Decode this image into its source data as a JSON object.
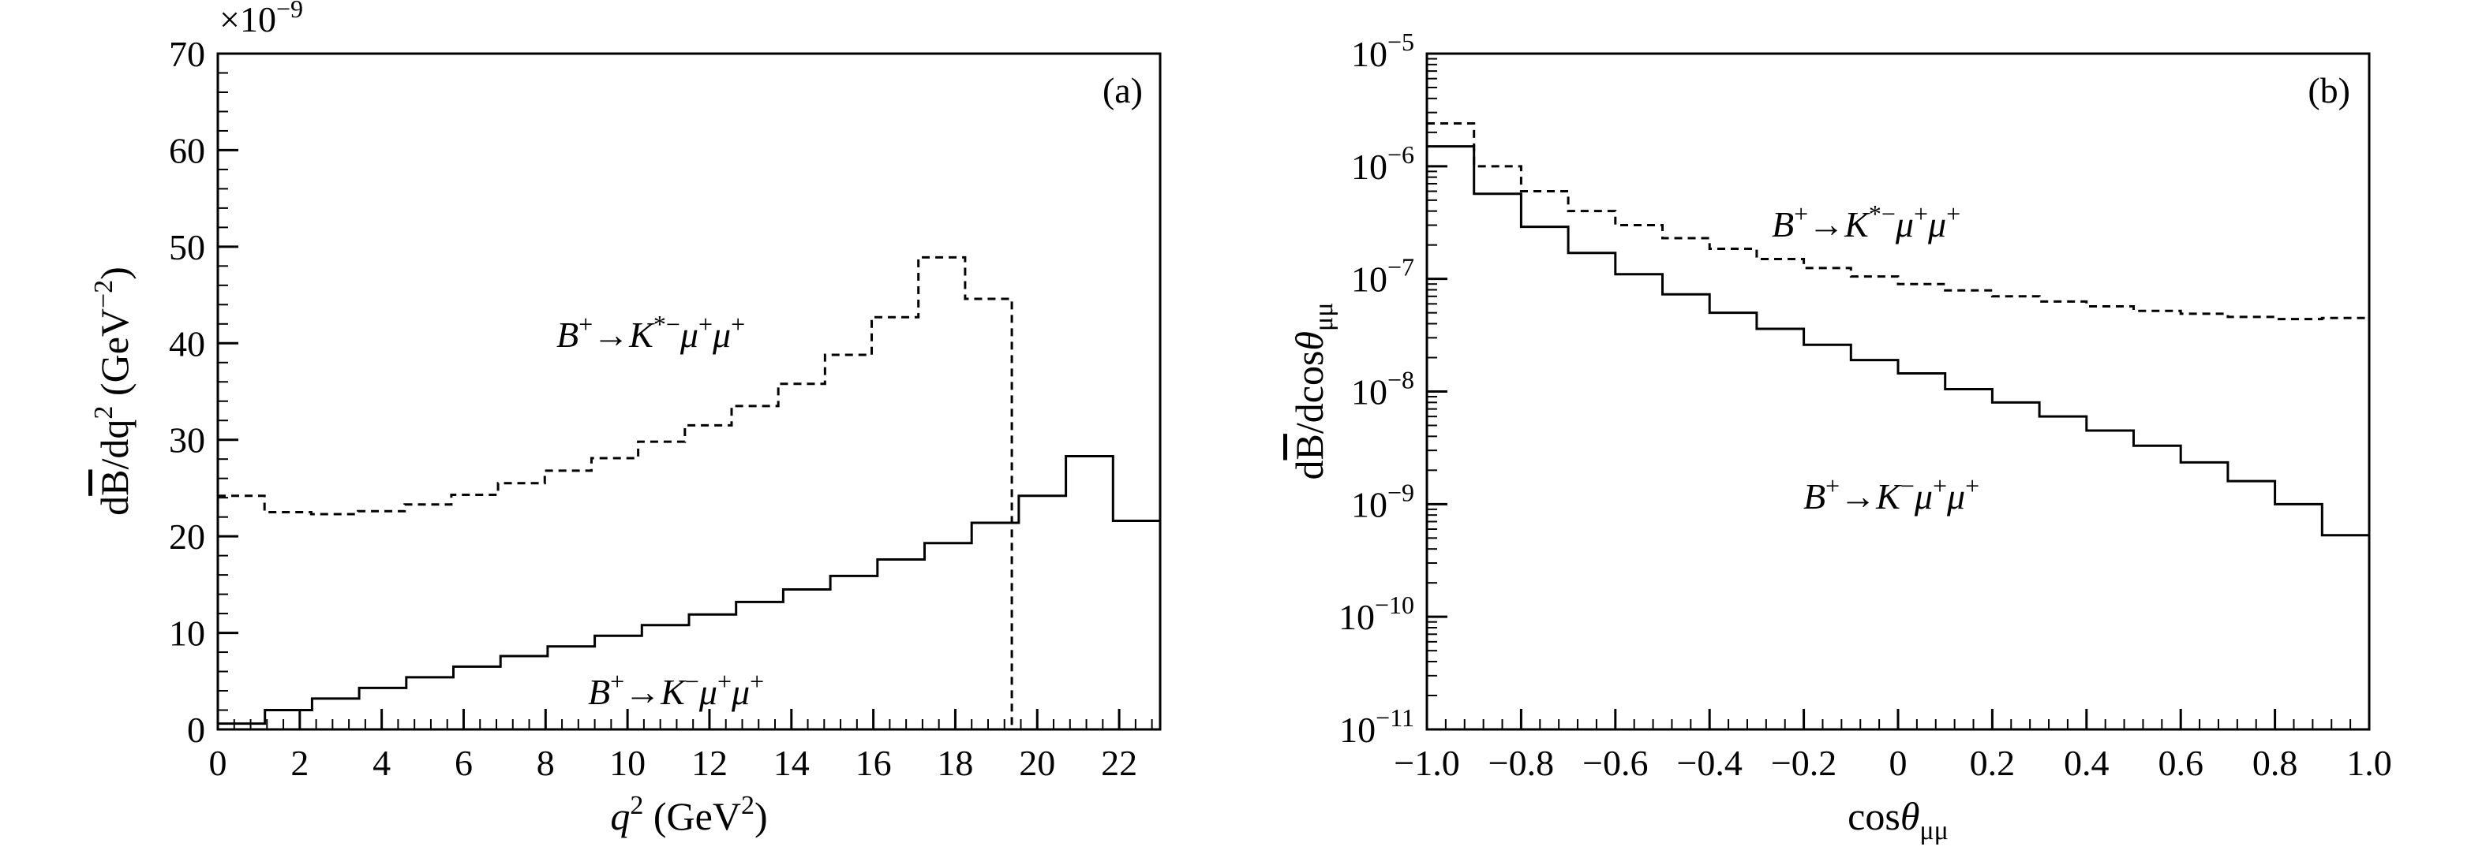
{
  "chart_data": [
    {
      "type": "histogram",
      "panel_label": "(a)",
      "xlabel": {
        "base": "q",
        "sup": "2",
        "rest": " (GeV",
        "sup2": "2",
        "close": ")"
      },
      "ylabel": {
        "pre": "d",
        "bar": "B",
        "mid": "/dq",
        "sup": "2",
        "rest": " (GeV",
        "sup2": "−2",
        "close": ")"
      },
      "y_multiplier": {
        "base": "×10",
        "exp": "−9"
      },
      "xlim": [
        0,
        23
      ],
      "ylim": [
        0,
        70
      ],
      "x_ticks": [
        0,
        2,
        4,
        6,
        8,
        10,
        12,
        14,
        16,
        18,
        20,
        22
      ],
      "y_ticks": [
        0,
        10,
        20,
        30,
        40,
        50,
        60,
        70
      ],
      "series": [
        {
          "name": "B+→K*−μ+μ+",
          "label": {
            "b": "B",
            "bsup": "+",
            "arrow": "→",
            "k": "K",
            "ksup": "*−",
            "m1": "μ",
            "m1sup": "+",
            "m2": "μ",
            "m2sup": "+"
          },
          "style": "dashed",
          "edges": [
            0,
            1.14,
            2.28,
            3.42,
            4.56,
            5.7,
            6.84,
            7.98,
            9.12,
            10.26,
            11.4,
            12.54,
            13.68,
            14.82,
            15.96,
            17.1,
            18.24,
            19.38
          ],
          "values": [
            24.2,
            22.5,
            22.3,
            22.6,
            23.3,
            24.3,
            25.5,
            26.8,
            28.1,
            29.8,
            31.5,
            33.5,
            35.8,
            38.8,
            42.7,
            48.9,
            44.6
          ],
          "drop_to": 0
        },
        {
          "name": "B+→K−μ+μ+",
          "label": {
            "b": "B",
            "bsup": "+",
            "arrow": "→",
            "k": "K",
            "ksup": "−",
            "m1": "μ",
            "m1sup": "+",
            "m2": "μ",
            "m2sup": "+"
          },
          "style": "solid",
          "edges": [
            0,
            1.15,
            2.3,
            3.45,
            4.6,
            5.75,
            6.9,
            8.05,
            9.2,
            10.35,
            11.5,
            12.65,
            13.8,
            14.95,
            16.1,
            17.25,
            18.4,
            19.55,
            20.7,
            21.85,
            23.0
          ],
          "values": [
            0.6,
            2.0,
            3.2,
            4.3,
            5.4,
            6.5,
            7.6,
            8.6,
            9.7,
            10.8,
            11.9,
            13.2,
            14.5,
            15.9,
            17.6,
            19.3,
            21.4,
            24.2,
            28.3,
            21.6
          ]
        }
      ]
    },
    {
      "type": "histogram",
      "panel_label": "(b)",
      "xlabel": {
        "base": "cos",
        "theta": "θ",
        "sub": "μμ"
      },
      "ylabel": {
        "pre": "d",
        "bar": "B",
        "mid": "/dcos",
        "theta": "θ",
        "sub": "μμ"
      },
      "y_scale": "log",
      "xlim": [
        -1.0,
        1.0
      ],
      "ylim": [
        1e-11,
        1e-05
      ],
      "x_ticks": [
        -1.0,
        -0.8,
        -0.6,
        -0.4,
        -0.2,
        0,
        0.2,
        0.4,
        0.6,
        0.8,
        1.0
      ],
      "x_tick_labels": [
        "−1.0",
        "−0.8",
        "−0.6",
        "−0.4",
        "−0.2",
        "0",
        "0.2",
        "0.4",
        "0.6",
        "0.8",
        "1.0"
      ],
      "y_ticks": [
        {
          "value": 1e-11,
          "exp": "−11"
        },
        {
          "value": 1e-10,
          "exp": "−10"
        },
        {
          "value": 1e-09,
          "exp": "−9"
        },
        {
          "value": 1e-08,
          "exp": "−8"
        },
        {
          "value": 1e-07,
          "exp": "−7"
        },
        {
          "value": 1e-06,
          "exp": "−6"
        },
        {
          "value": 1e-05,
          "exp": "−5"
        }
      ],
      "y_tick_base": "10",
      "series": [
        {
          "name": "B+→K*−μ+μ+",
          "label": {
            "b": "B",
            "bsup": "+",
            "arrow": "→",
            "k": "K",
            "ksup": "*−",
            "m1": "μ",
            "m1sup": "+",
            "m2": "μ",
            "m2sup": "+"
          },
          "style": "dashed",
          "edges": [
            -1.0,
            -0.9,
            -0.8,
            -0.7,
            -0.6,
            -0.5,
            -0.4,
            -0.3,
            -0.2,
            -0.1,
            0.0,
            0.1,
            0.2,
            0.3,
            0.4,
            0.5,
            0.6,
            0.7,
            0.8,
            0.9,
            1.0
          ],
          "values": [
            2.4e-06,
            1e-06,
            6e-07,
            4e-07,
            3e-07,
            2.3e-07,
            1.85e-07,
            1.5e-07,
            1.25e-07,
            1.05e-07,
            9e-08,
            7.9e-08,
            7e-08,
            6.3e-08,
            5.7e-08,
            5.2e-08,
            4.9e-08,
            4.6e-08,
            4.4e-08,
            4.5e-08
          ]
        },
        {
          "name": "B+→K−μ+μ+",
          "label": {
            "b": "B",
            "bsup": "+",
            "arrow": "→",
            "k": "K",
            "ksup": "−",
            "m1": "μ",
            "m1sup": "+",
            "m2": "μ",
            "m2sup": "+"
          },
          "style": "solid",
          "edges": [
            -1.0,
            -0.9,
            -0.8,
            -0.7,
            -0.6,
            -0.5,
            -0.4,
            -0.3,
            -0.2,
            -0.1,
            0.0,
            0.1,
            0.2,
            0.3,
            0.4,
            0.5,
            0.6,
            0.7,
            0.8,
            0.9,
            1.0
          ],
          "values": [
            1.5e-06,
            5.7e-07,
            2.9e-07,
            1.7e-07,
            1.1e-07,
            7.3e-08,
            5e-08,
            3.6e-08,
            2.6e-08,
            1.9e-08,
            1.45e-08,
            1.05e-08,
            8e-09,
            6e-09,
            4.5e-09,
            3.3e-09,
            2.35e-09,
            1.6e-09,
            1e-09,
            5.3e-10
          ]
        }
      ]
    }
  ]
}
